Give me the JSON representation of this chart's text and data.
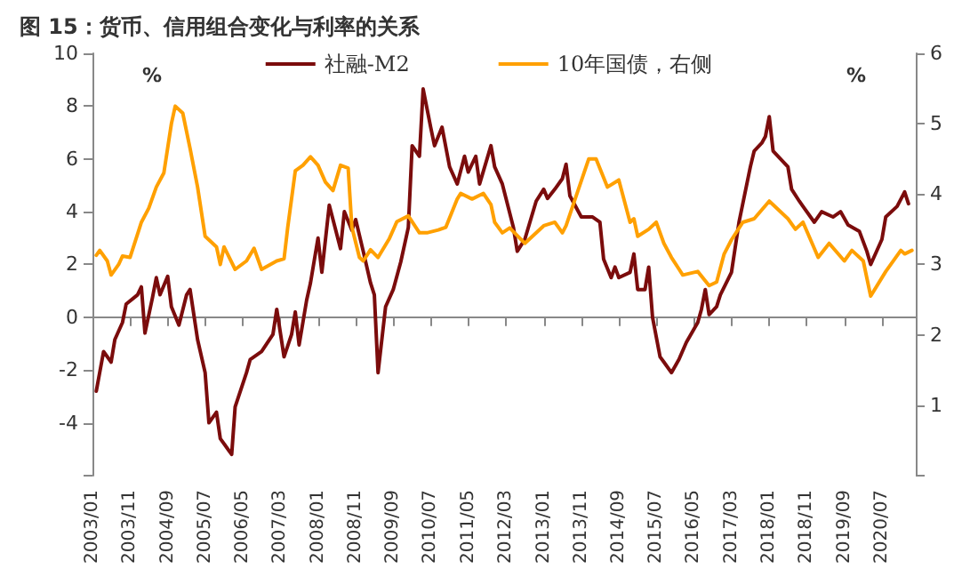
{
  "chart_data": {
    "type": "line",
    "title": "图 15：货币、信用组合变化与利率的关系",
    "ylabel": "%",
    "y2label": "%",
    "xlim": [
      "2003-01",
      "2021-04"
    ],
    "xticks": [
      {
        "value": "2003-01",
        "label": "2003/01"
      },
      {
        "value": "2003-11",
        "label": "2003/11"
      },
      {
        "value": "2004-09",
        "label": "2004/09"
      },
      {
        "value": "2005-07",
        "label": "2005/07"
      },
      {
        "value": "2006-05",
        "label": "2006/05"
      },
      {
        "value": "2007-03",
        "label": "2007/03"
      },
      {
        "value": "2008-01",
        "label": "2008/01"
      },
      {
        "value": "2008-11",
        "label": "2008/11"
      },
      {
        "value": "2009-09",
        "label": "2009/09"
      },
      {
        "value": "2010-07",
        "label": "2010/07"
      },
      {
        "value": "2011-05",
        "label": "2011/05"
      },
      {
        "value": "2012-03",
        "label": "2012/03"
      },
      {
        "value": "2013-01",
        "label": "2013/01"
      },
      {
        "value": "2013-11",
        "label": "2013/11"
      },
      {
        "value": "2014-09",
        "label": "2014/09"
      },
      {
        "value": "2015-07",
        "label": "2015/07"
      },
      {
        "value": "2016-05",
        "label": "2016/05"
      },
      {
        "value": "2017-03",
        "label": "2017/03"
      },
      {
        "value": "2018-01",
        "label": "2018/01"
      },
      {
        "value": "2018-11",
        "label": "2018/11"
      },
      {
        "value": "2019-09",
        "label": "2019/09"
      },
      {
        "value": "2020-07",
        "label": "2020/07"
      }
    ],
    "ylim": [
      -6,
      10
    ],
    "yticks": [
      {
        "value": -6,
        "label": null
      },
      -4,
      -2,
      0,
      2,
      4,
      6,
      8,
      10
    ],
    "y2lim": [
      0,
      6
    ],
    "y2ticks": [
      {
        "value": 0,
        "label": null
      },
      1,
      2,
      3,
      4,
      5,
      6
    ],
    "legend": "top",
    "marker": "none",
    "line_style": "solid",
    "series": [
      {
        "name": "社融-M2",
        "color": "#7b0c0c",
        "x": [
          "2003-02",
          "2003-04",
          "2003-06",
          "2003-07",
          "2003-09",
          "2003-10",
          "2004-01",
          "2004-02",
          "2004-03",
          "2004-05",
          "2004-06",
          "2004-07",
          "2004-09",
          "2004-10",
          "2004-12",
          "2005-02",
          "2005-03",
          "2005-05",
          "2005-07",
          "2005-08",
          "2005-10",
          "2005-11",
          "2006-02",
          "2006-03",
          "2006-06",
          "2006-07",
          "2006-10",
          "2007-01",
          "2007-02",
          "2007-04",
          "2007-06",
          "2007-07",
          "2007-08",
          "2007-10",
          "2007-11",
          "2008-01",
          "2008-02",
          "2008-04",
          "2008-07",
          "2008-08",
          "2008-10",
          "2008-11",
          "2009-01",
          "2009-03",
          "2009-04",
          "2009-05",
          "2009-07",
          "2009-09",
          "2009-11",
          "2010-01",
          "2010-02",
          "2010-04",
          "2010-05",
          "2010-07",
          "2010-08",
          "2010-10",
          "2010-12",
          "2011-02",
          "2011-04",
          "2011-05",
          "2011-07",
          "2011-08",
          "2011-11",
          "2011-12",
          "2012-02",
          "2012-05",
          "2012-06",
          "2012-08",
          "2012-11",
          "2013-01",
          "2013-02",
          "2013-04",
          "2013-06",
          "2013-07",
          "2013-08",
          "2013-11",
          "2014-02",
          "2014-04",
          "2014-05",
          "2014-07",
          "2014-08",
          "2014-09",
          "2014-12",
          "2015-01",
          "2015-02",
          "2015-04",
          "2015-05",
          "2015-06",
          "2015-08",
          "2015-09",
          "2015-11",
          "2016-01",
          "2016-03",
          "2016-06",
          "2016-07",
          "2016-08",
          "2016-09",
          "2016-11",
          "2016-12",
          "2017-03",
          "2017-05",
          "2017-08",
          "2017-09",
          "2017-11",
          "2017-12",
          "2018-01",
          "2018-02",
          "2018-04",
          "2018-06",
          "2018-07",
          "2018-09",
          "2018-10",
          "2019-01",
          "2019-03",
          "2019-06",
          "2019-08",
          "2019-10",
          "2020-01",
          "2020-03",
          "2020-04",
          "2020-07",
          "2020-08",
          "2020-11",
          "2021-01",
          "2021-02"
        ],
        "values": [
          -2.8,
          -1.3,
          -1.7,
          -0.85,
          -0.2,
          0.5,
          0.85,
          1.15,
          -0.6,
          0.75,
          1.5,
          0.85,
          1.55,
          0.4,
          -0.3,
          0.85,
          1.05,
          -0.85,
          -2.1,
          -4.0,
          -3.6,
          -4.6,
          -5.2,
          -3.4,
          -2.1,
          -1.6,
          -1.3,
          -0.65,
          0.3,
          -1.5,
          -0.65,
          0.2,
          -1.05,
          0.65,
          1.3,
          3.0,
          1.7,
          4.25,
          2.6,
          4.0,
          3.3,
          3.7,
          2.5,
          1.3,
          0.85,
          -2.1,
          0.4,
          1.05,
          2.1,
          3.4,
          6.5,
          6.1,
          8.65,
          7.2,
          6.5,
          7.2,
          5.7,
          5.05,
          6.1,
          5.5,
          6.1,
          5.05,
          6.5,
          5.7,
          5.05,
          3.4,
          2.5,
          2.95,
          4.4,
          4.85,
          4.5,
          4.85,
          5.25,
          5.8,
          4.6,
          3.8,
          3.8,
          3.6,
          2.2,
          1.5,
          1.9,
          1.5,
          1.7,
          2.4,
          1.05,
          1.05,
          1.9,
          0,
          -1.5,
          -1.7,
          -2.1,
          -1.6,
          -0.95,
          -0.2,
          0.3,
          1.05,
          0.1,
          0.4,
          0.85,
          1.7,
          3.6,
          5.7,
          6.3,
          6.6,
          6.85,
          7.6,
          6.3,
          6.0,
          5.7,
          4.85,
          4.4,
          4.2,
          3.6,
          4.0,
          3.8,
          4.0,
          3.5,
          3.25,
          2.5,
          2.0,
          2.95,
          3.8,
          4.2,
          4.75,
          4.3
        ]
      },
      {
        "name": "10年国债，右侧",
        "color": "#ffa000",
        "axis": "y2",
        "x": [
          "2003-02",
          "2003-03",
          "2003-05",
          "2003-06",
          "2003-08",
          "2003-09",
          "2003-11",
          "2004-02",
          "2004-04",
          "2004-06",
          "2004-08",
          "2004-10",
          "2004-11",
          "2005-01",
          "2005-03",
          "2005-05",
          "2005-07",
          "2005-10",
          "2005-11",
          "2005-12",
          "2006-03",
          "2006-06",
          "2006-08",
          "2006-10",
          "2007-02",
          "2007-04",
          "2007-05",
          "2007-07",
          "2007-09",
          "2007-11",
          "2008-01",
          "2008-03",
          "2008-05",
          "2008-07",
          "2008-09",
          "2008-10",
          "2008-12",
          "2009-01",
          "2009-03",
          "2009-05",
          "2009-08",
          "2009-10",
          "2010-01",
          "2010-04",
          "2010-06",
          "2010-09",
          "2010-11",
          "2011-02",
          "2011-03",
          "2011-06",
          "2011-09",
          "2011-11",
          "2011-12",
          "2012-02",
          "2012-04",
          "2012-08",
          "2013-01",
          "2013-04",
          "2013-06",
          "2013-07",
          "2014-01",
          "2014-03",
          "2014-06",
          "2014-09",
          "2014-12",
          "2015-01",
          "2015-02",
          "2015-05",
          "2015-07",
          "2015-09",
          "2015-11",
          "2016-02",
          "2016-06",
          "2016-09",
          "2016-11",
          "2017-01",
          "2017-03",
          "2017-06",
          "2017-09",
          "2018-01",
          "2018-06",
          "2018-08",
          "2018-10",
          "2019-02",
          "2019-05",
          "2019-09",
          "2019-11",
          "2020-02",
          "2020-04",
          "2020-08",
          "2020-12",
          "2021-01",
          "2021-03"
        ],
        "values": [
          3.13,
          3.2,
          3.05,
          2.85,
          3.0,
          3.12,
          3.1,
          3.6,
          3.8,
          4.1,
          4.3,
          5.0,
          5.25,
          5.15,
          4.65,
          4.1,
          3.4,
          3.25,
          3.0,
          3.25,
          2.93,
          3.05,
          3.23,
          2.93,
          3.05,
          3.08,
          3.53,
          4.33,
          4.41,
          4.53,
          4.41,
          4.17,
          4.05,
          4.41,
          4.37,
          3.53,
          3.1,
          3.05,
          3.21,
          3.1,
          3.37,
          3.61,
          3.69,
          3.45,
          3.45,
          3.49,
          3.53,
          3.93,
          4.01,
          3.93,
          4.01,
          3.85,
          3.6,
          3.45,
          3.52,
          3.3,
          3.55,
          3.6,
          3.45,
          3.55,
          4.5,
          4.5,
          4.1,
          4.2,
          3.6,
          3.65,
          3.4,
          3.5,
          3.6,
          3.3,
          3.1,
          2.85,
          2.9,
          2.7,
          2.75,
          3.15,
          3.35,
          3.6,
          3.65,
          3.9,
          3.65,
          3.5,
          3.6,
          3.1,
          3.3,
          3.05,
          3.2,
          3.05,
          2.55,
          2.9,
          3.2,
          3.15,
          3.2
        ]
      }
    ]
  }
}
